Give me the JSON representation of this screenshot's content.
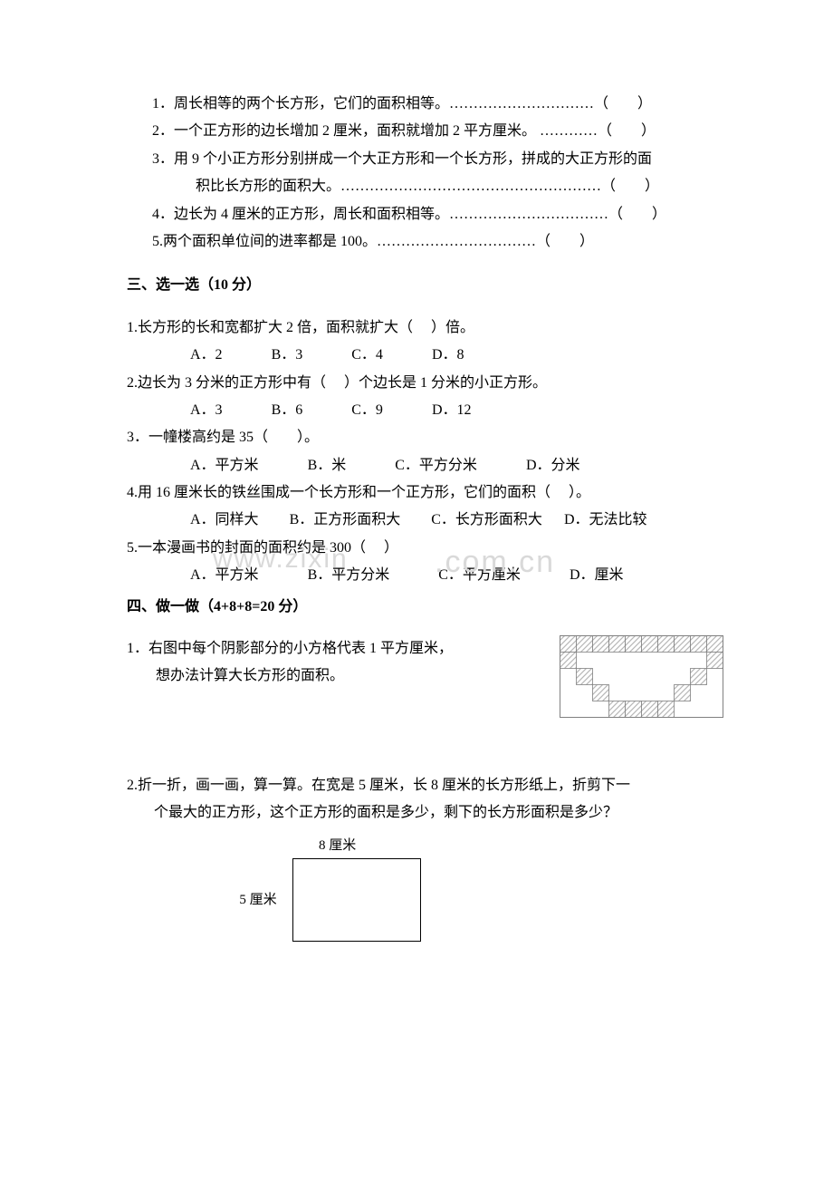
{
  "section2": {
    "q1": "1．周长相等的两个长方形，它们的面积相等。…………………………（　　）",
    "q2": "2．一个正方形的边长增加 2 厘米，面积就增加 2 平方厘米。 …………（　　）",
    "q3a": "3．用 9 个小正方形分别拼成一个大正方形和一个长方形，拼成的大正方形的面",
    "q3b": "积比长方形的面积大。………………………………………………（　　）",
    "q4": "4．边长为 4 厘米的正方形，周长和面积相等。……………………………（　　）",
    "q5": "5.两个面积单位间的进率都是 100。……………………………（　　）"
  },
  "section3": {
    "title": "三、选一选（10 分）",
    "q1": "1.长方形的长和宽都扩大 2 倍，面积就扩大（　 ）倍。",
    "q1opts": {
      "a": "A．2",
      "b": "B．3",
      "c": "C．4",
      "d": "D．8"
    },
    "q2": "2.边长为 3 分米的正方形中有（　 ）个边长是 1 分米的小正方形。",
    "q2opts": {
      "a": "A．3",
      "b": "B．6",
      "c": "C．9",
      "d": "D．12"
    },
    "q3": "3．一幢楼高约是 35（　　）。",
    "q3opts": {
      "a": "A．平方米",
      "b": "B．米",
      "c": "C．平方分米",
      "d": "D．分米"
    },
    "q4": "4.用 16 厘米长的铁丝围成一个长方形和一个正方形，它们的面积（　 ）。",
    "q4opts": {
      "a": "A．同样大",
      "b": "B．正方形面积大",
      "c": "C．长方形面积大",
      "d": "D．无法比较"
    },
    "q5": "5.一本漫画书的封面的面积约是 300（　 ）",
    "q5opts": {
      "a": "A．平方米",
      "b": "B．平方分米",
      "c": "C．平方厘米",
      "d": "D．厘米"
    }
  },
  "section4": {
    "title": "四、做一做（4+8+8=20 分）",
    "q1a": "1．右图中每个阴影部分的小方格代表 1 平方厘米，",
    "q1b": "想办法计算大长方形的面积。",
    "q2a": "2.折一折，画一画，算一算。在宽是 5 厘米，长 8 厘米的长方形纸上，折剪下一",
    "q2b": "个最大的正方形，这个正方形的面积是多少，剩下的长方形面积是多少？",
    "rect_top": "8 厘米",
    "rect_left": "5 厘米"
  },
  "watermark1": "www.zixin",
  "watermark2": ".com.cn",
  "grid": {
    "cell": 18,
    "cols": 10,
    "rows": 5,
    "shaded_color": "#b7b7b7",
    "line_color": "#808080",
    "cells": [
      [
        1,
        1,
        1,
        1,
        1,
        1,
        1,
        1,
        1,
        1
      ],
      [
        1,
        0,
        0,
        0,
        0,
        0,
        0,
        0,
        0,
        1
      ],
      [
        0,
        1,
        0,
        0,
        0,
        0,
        0,
        0,
        1,
        0
      ],
      [
        0,
        0,
        1,
        0,
        0,
        0,
        0,
        1,
        0,
        0
      ],
      [
        0,
        0,
        0,
        1,
        1,
        1,
        1,
        0,
        0,
        0
      ]
    ]
  }
}
